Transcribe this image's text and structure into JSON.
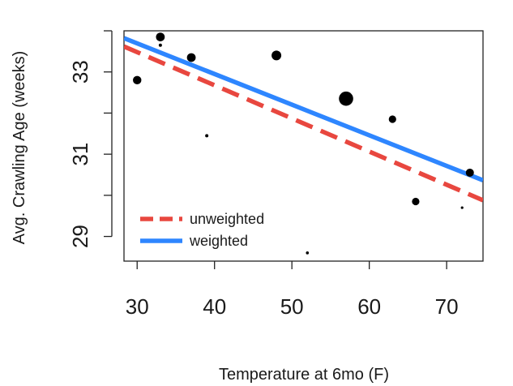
{
  "chart_data": {
    "type": "scatter",
    "title": "",
    "xlabel": "Temperature at 6mo (F)",
    "ylabel": "Avg. Crawling Age (weeks)",
    "xlim": [
      28.3,
      74.7
    ],
    "ylim": [
      28.4,
      34.0
    ],
    "x_ticks": [
      30,
      40,
      50,
      60,
      70
    ],
    "y_ticks": [
      29,
      30,
      31,
      32,
      33,
      34
    ],
    "y_tick_labels": [
      29,
      31,
      33
    ],
    "grid": false,
    "legend_position": "bottom-left",
    "points": [
      {
        "x": 30,
        "y": 32.8,
        "size": 2.6
      },
      {
        "x": 33,
        "y": 33.85,
        "size": 2.7
      },
      {
        "x": 33,
        "y": 33.65,
        "size": 1.0
      },
      {
        "x": 37,
        "y": 33.35,
        "size": 2.7
      },
      {
        "x": 39,
        "y": 31.45,
        "size": 1.0
      },
      {
        "x": 48,
        "y": 33.4,
        "size": 3.0
      },
      {
        "x": 52,
        "y": 28.6,
        "size": 0.9
      },
      {
        "x": 57,
        "y": 32.35,
        "size": 4.4
      },
      {
        "x": 63,
        "y": 31.85,
        "size": 2.3
      },
      {
        "x": 66,
        "y": 29.85,
        "size": 2.3
      },
      {
        "x": 72,
        "y": 29.7,
        "size": 0.8
      },
      {
        "x": 73,
        "y": 30.55,
        "size": 2.5
      }
    ],
    "series": [
      {
        "name": "unweighted",
        "color": "#E8473F",
        "style": "dashed",
        "intercept": 35.9,
        "slope": -0.0806
      },
      {
        "name": "weighted",
        "color": "#2E86FF",
        "style": "solid",
        "intercept": 35.93,
        "slope": -0.0745
      }
    ]
  }
}
